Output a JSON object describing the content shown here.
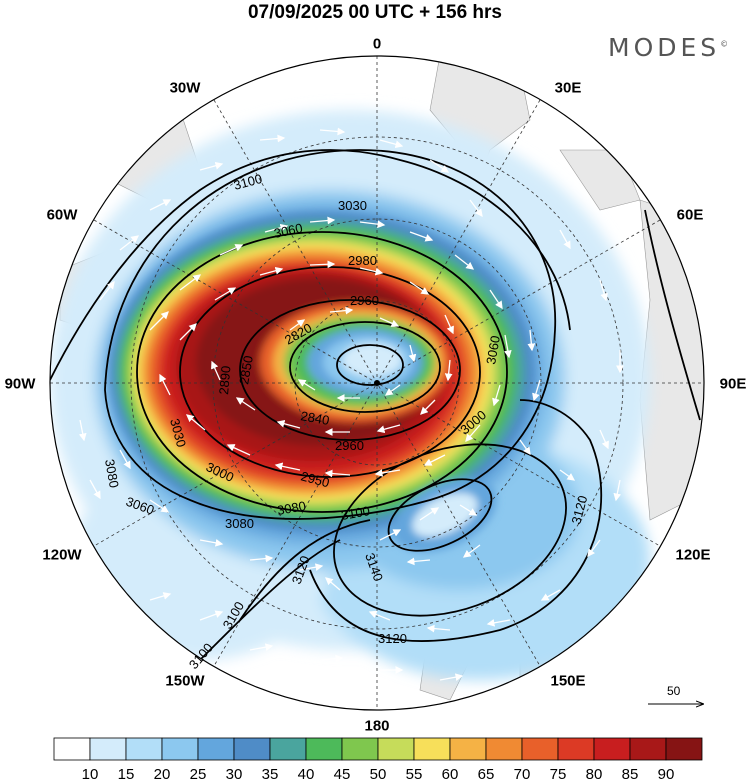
{
  "title": "07/09/2025  00 UTC  + 156 hrs",
  "brand": "MODES",
  "brand_mark": "©",
  "longitude_labels": [
    "0",
    "30E",
    "60E",
    "90E",
    "120E",
    "150E",
    "180",
    "150W",
    "120W",
    "90W",
    "60W",
    "30W"
  ],
  "contour_labels": [
    "3100",
    "3030",
    "3060",
    "2980",
    "2960",
    "2820",
    "2850",
    "2890",
    "3060",
    "2840",
    "2950",
    "3030",
    "3000",
    "3080",
    "3060",
    "2960",
    "3000",
    "3080",
    "3100",
    "3120",
    "3140",
    "3120",
    "3100",
    "3100",
    "3120",
    "3080"
  ],
  "colorbar": {
    "ticks": [
      "10",
      "15",
      "20",
      "25",
      "30",
      "35",
      "40",
      "45",
      "50",
      "55",
      "60",
      "65",
      "70",
      "75",
      "80",
      "85",
      "90"
    ],
    "colors": [
      "#ffffff",
      "#d4ecfb",
      "#b2def8",
      "#8cc8ef",
      "#63a6dd",
      "#4f8cc7",
      "#4aa59e",
      "#4dba5a",
      "#7fc74e",
      "#c6dc5a",
      "#f7df5a",
      "#f5b245",
      "#f08a33",
      "#e8602a",
      "#dc3a25",
      "#c81e1f",
      "#a81818",
      "#861414"
    ]
  },
  "wind_scale": {
    "label": "50"
  },
  "icons": [
    "wind-vector-arrow",
    "pole-marker"
  ]
}
